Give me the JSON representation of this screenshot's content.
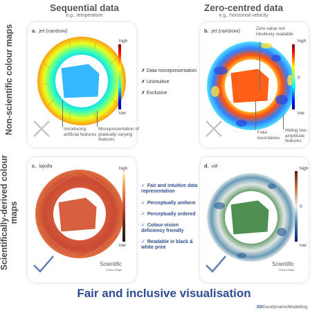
{
  "columns": {
    "left": {
      "title": "Sequential data",
      "subtitle": "e.g., temperature"
    },
    "right": {
      "title": "Zero-centred data",
      "subtitle": "e.g., horizontal velocity"
    }
  },
  "rows": {
    "top": "Non-scientific colour maps",
    "bottom": "Scientifically-derived colour maps"
  },
  "panels": {
    "a": {
      "letter": "a.",
      "name": "jet (rainbow)",
      "high": "high",
      "low": "low",
      "annotations": [
        "Introducing artificial features",
        "Misrepresentation of gradually varying features"
      ]
    },
    "b": {
      "letter": "b.",
      "name": "jet (rainbow)",
      "high": "high",
      "zero": "0",
      "low": "low",
      "annotations": [
        "Zero value not intuitively readable",
        "Fake boundaries",
        "Hiding low-amplitude features"
      ]
    },
    "c": {
      "letter": "c.",
      "name": "lajolla",
      "high": "high",
      "low": "low"
    },
    "d": {
      "letter": "d.",
      "name": "vik",
      "high": "high",
      "zero": "0",
      "low": "low"
    }
  },
  "criticisms": [
    "Data misrepresentation",
    "Unintuitive",
    "Exclusive"
  ],
  "features": [
    "Fair and intuitive data representation",
    "Perceptually uniform",
    "Perceptually ordered",
    "Colour-vision deficiency friendly",
    "Readable in black & white print"
  ],
  "logo": {
    "name": "Scientific",
    "small": "Colour Maps"
  },
  "footer": {
    "title": "Fair and inclusive visualisation",
    "brand_prefix": "IOI",
    "brand": "GeodynamicModelling"
  },
  "colors": {
    "accent": "#2e4b96",
    "cross": "#c4c4c4",
    "check": "#5b7fb5"
  }
}
